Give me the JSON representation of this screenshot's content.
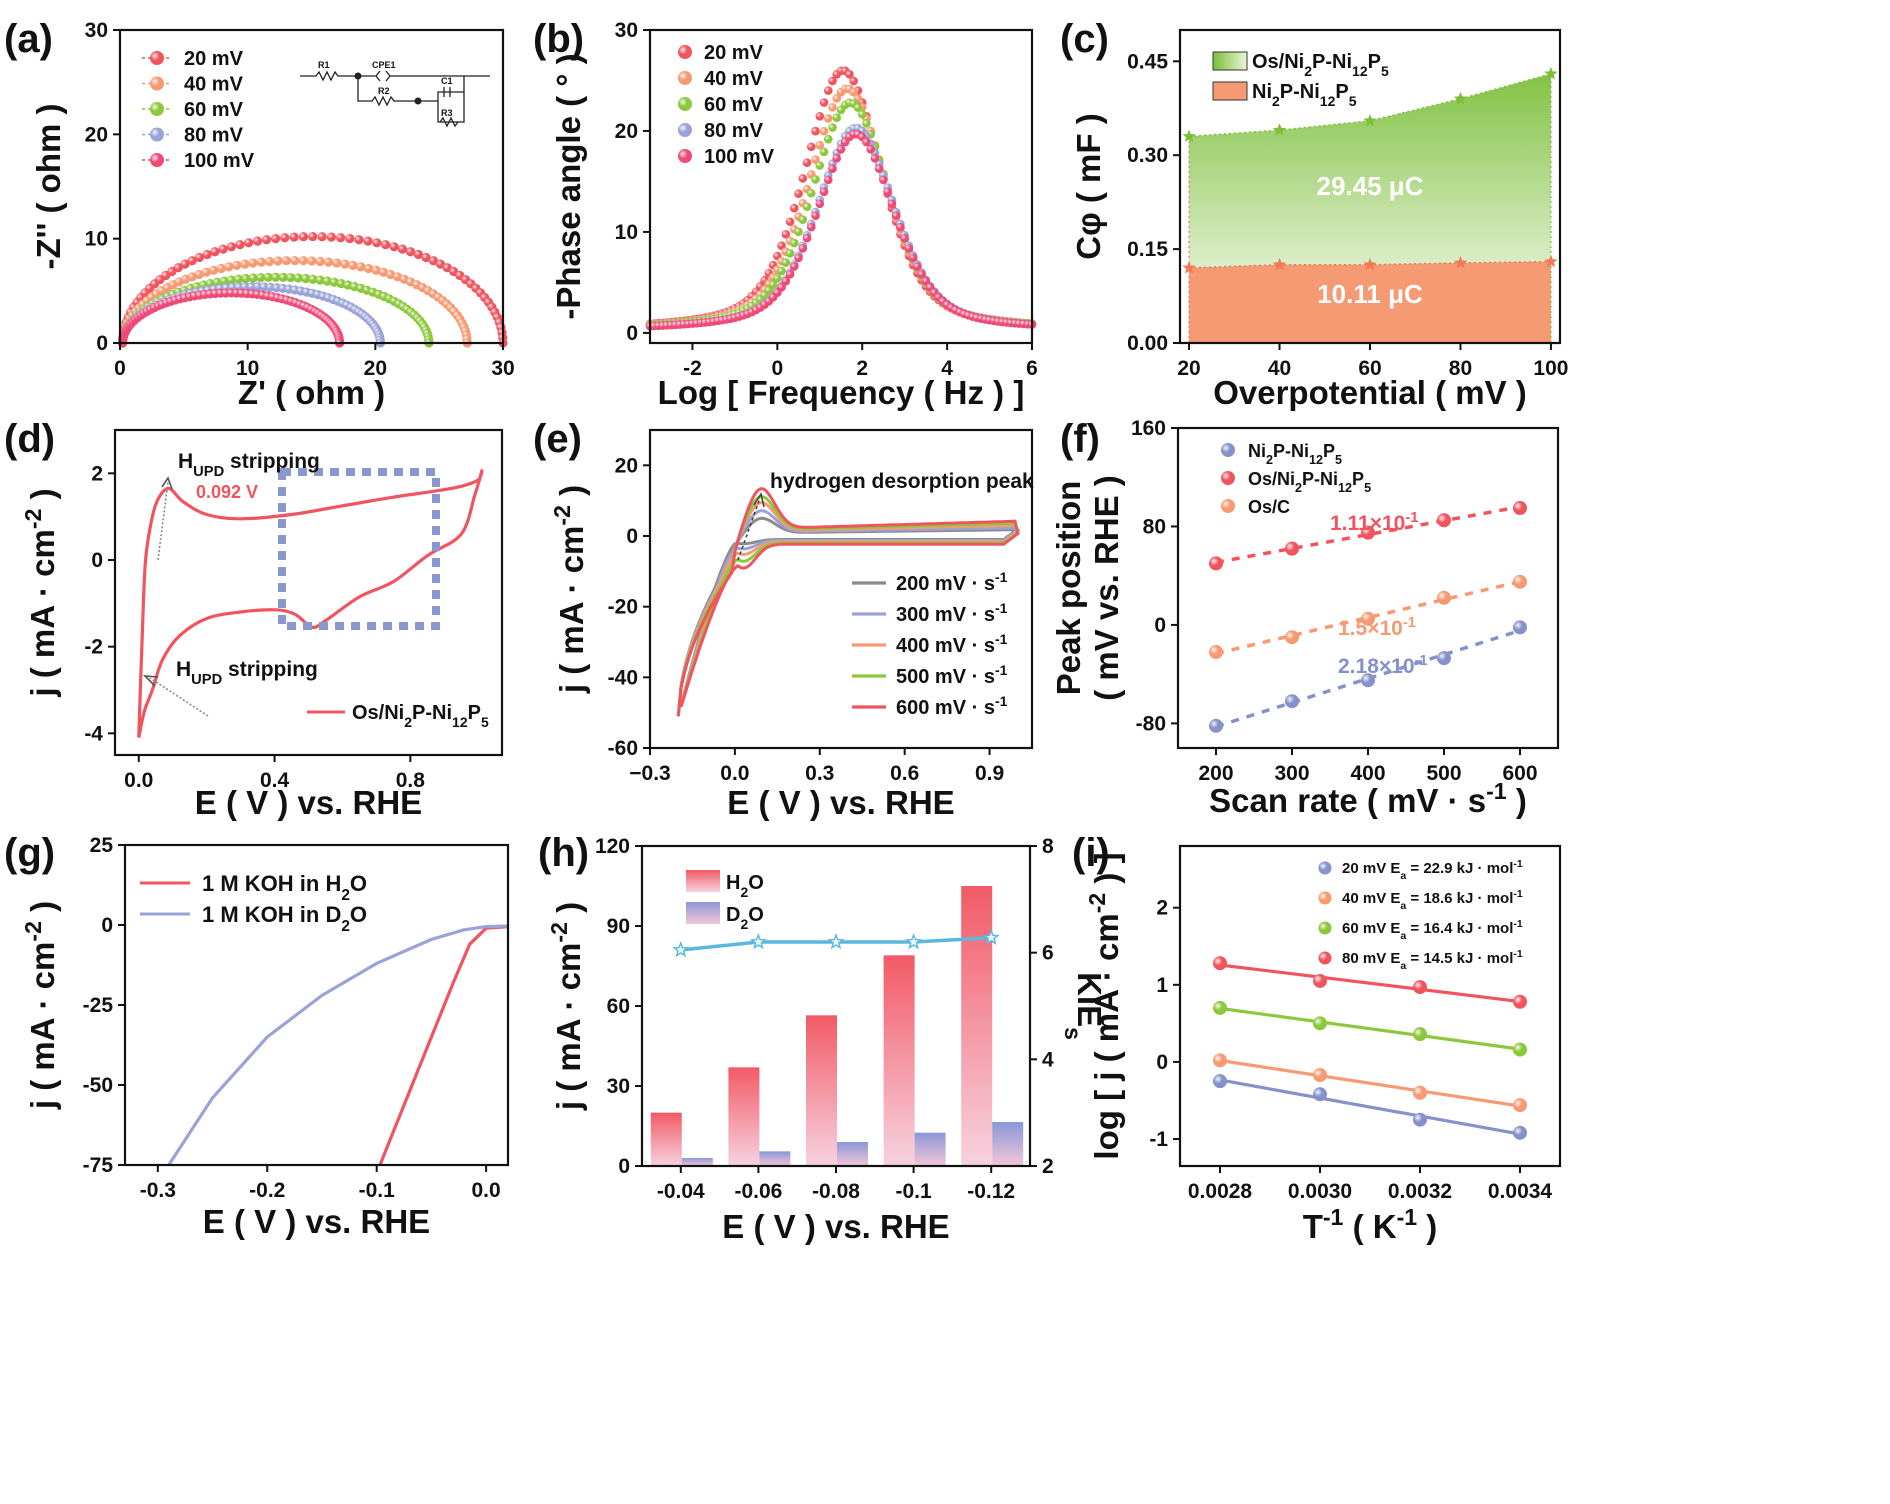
{
  "colors": {
    "red": "#f0555f",
    "orange": "#f79a72",
    "green": "#8cc83c",
    "blue": "#9aa3d8",
    "pink": "#ef4a77",
    "gray": "#8b8b8b",
    "purple_blue": "#8591c9",
    "cyan": "#5ab7dd",
    "green_fill": "#8ec94e",
    "orange_fill": "#f59a73"
  },
  "panels": [
    {
      "id": "a",
      "label": "(a)",
      "xlabel": "Z' ( ohm )",
      "ylabel": "-Z'' ( ohm )",
      "xlim": [
        0,
        30
      ],
      "ylim": [
        0,
        30
      ],
      "xticks": [
        "0",
        "10",
        "20",
        "30"
      ],
      "yticks": [
        "0",
        "10",
        "20",
        "30"
      ],
      "legend": [
        "20 mV",
        "40 mV",
        "60 mV",
        "80 mV",
        "100 mV"
      ],
      "circuit_labels": [
        "R1",
        "CPE1",
        "R2",
        "C1",
        "R3"
      ]
    },
    {
      "id": "b",
      "label": "(b)",
      "xlabel": "Log [ Frequency ( Hz ) ]",
      "ylabel": "-Phase angle ( ° )",
      "xlim": [
        -3,
        6
      ],
      "ylim": [
        -1,
        30
      ],
      "xticks": [
        "-2",
        "0",
        "2",
        "4",
        "6"
      ],
      "yticks": [
        "0",
        "10",
        "20",
        "30"
      ],
      "legend": [
        "20 mV",
        "40 mV",
        "60 mV",
        "80 mV",
        "100 mV"
      ]
    },
    {
      "id": "c",
      "label": "(c)",
      "xlabel": "Overpotential ( mV )",
      "ylabel": "Cφ ( mF )",
      "xlim": [
        18,
        102
      ],
      "ylim": [
        0,
        0.5
      ],
      "xticks": [
        "20",
        "40",
        "60",
        "80",
        "100"
      ],
      "yticks": [
        "0.00",
        "0.15",
        "0.30",
        "0.45"
      ],
      "legend": [
        "Os/Ni2P-Ni12P5",
        "Ni2P-Ni12P5"
      ],
      "area_labels": [
        "29.45 μC",
        "10.11 μC"
      ]
    },
    {
      "id": "d",
      "label": "(d)",
      "xlabel": "E ( V ) vs. RHE",
      "ylabel": "j ( mA · cm-2 )",
      "xlim": [
        -0.07,
        1.07
      ],
      "ylim": [
        -4.5,
        3
      ],
      "xticks": [
        "0.0",
        "0.4",
        "0.8"
      ],
      "yticks": [
        "-4",
        "-2",
        "0",
        "2"
      ],
      "legend": [
        "Os/Ni2P-Ni12P5"
      ],
      "annotations": [
        "HUPD stripping",
        "0.092 V",
        "HUPD stripping"
      ]
    },
    {
      "id": "e",
      "label": "(e)",
      "xlabel": "E ( V ) vs. RHE",
      "ylabel": "j ( mA · cm-2 )",
      "xlim": [
        -0.3,
        1.05
      ],
      "ylim": [
        -60,
        30
      ],
      "xticks": [
        "−0.3",
        "0.0",
        "0.3",
        "0.6",
        "0.9"
      ],
      "yticks": [
        "-60",
        "-40",
        "-20",
        "0",
        "20"
      ],
      "legend": [
        "200 mV · s-1",
        "300 mV · s-1",
        "400 mV · s-1",
        "500 mV · s-1",
        "600 mV · s-1"
      ],
      "annotation": "hydrogen desorption peak"
    },
    {
      "id": "f",
      "label": "(f)",
      "xlabel": "Scan rate ( mV · s-1 )",
      "ylabel": "Peak position ( mV vs. RHE )",
      "xlim": [
        150,
        650
      ],
      "ylim": [
        -100,
        160
      ],
      "xticks": [
        "200",
        "300",
        "400",
        "500",
        "600"
      ],
      "yticks": [
        "-80",
        "0",
        "80",
        "160"
      ],
      "legend": [
        "Ni2P-Ni12P5",
        "Os/Ni2P-Ni12P5",
        "Os/C"
      ],
      "slope_labels": [
        "1.11×10-1",
        "1.5×10-1",
        "2.18×10-1"
      ]
    },
    {
      "id": "g",
      "label": "(g)",
      "xlabel": "E ( V ) vs. RHE",
      "ylabel": "j ( mA · cm-2 )",
      "xlim": [
        -0.33,
        0.02
      ],
      "ylim": [
        -75,
        25
      ],
      "xticks": [
        "-0.3",
        "-0.2",
        "-0.1",
        "0.0"
      ],
      "yticks": [
        "-75",
        "-50",
        "-25",
        "0",
        "25"
      ],
      "legend": [
        "1 M KOH in H2O",
        "1 M KOH in D2O"
      ]
    },
    {
      "id": "h",
      "label": "(h)",
      "xlabel": "E ( V ) vs. RHE",
      "ylabel": "j ( mA · cm-2 )",
      "ylabel2": "KIEs",
      "ylim": [
        0,
        120
      ],
      "y2lim": [
        2,
        8
      ],
      "xticks": [
        "-0.04",
        "-0.06",
        "-0.08",
        "-0.1",
        "-0.12"
      ],
      "yticks": [
        "0",
        "30",
        "60",
        "90",
        "120"
      ],
      "y2ticks": [
        "2",
        "4",
        "6",
        "8"
      ],
      "legend": [
        "H2O",
        "D2O"
      ]
    },
    {
      "id": "i",
      "label": "(i)",
      "xlabel": "T-1 ( K-1 )",
      "ylabel": "log [ j ( mA · cm-2 ) ]",
      "xlim": [
        0.00272,
        0.00348
      ],
      "ylim": [
        -1.35,
        2.8
      ],
      "xticks": [
        "0.0028",
        "0.0030",
        "0.0032",
        "0.0034"
      ],
      "yticks": [
        "-1",
        "0",
        "1",
        "2"
      ],
      "legend": [
        "20 mV Ea = 22.9 kJ · mol-1",
        "40 mV Ea = 18.6 kJ · mol-1",
        "60 mV Ea = 16.4 kJ · mol-1",
        "80 mV Ea = 14.5 kJ · mol-1"
      ]
    }
  ],
  "chart_data": [
    {
      "panel": "a",
      "type": "scatter",
      "series": [
        {
          "name": "20 mV",
          "diameter_ohm": 29.8,
          "x_start": 0.2
        },
        {
          "name": "40 mV",
          "diameter_ohm": 27.0,
          "x_start": 0.2
        },
        {
          "name": "60 mV",
          "diameter_ohm": 24.0,
          "x_start": 0.2
        },
        {
          "name": "80 mV",
          "diameter_ohm": 20.2,
          "x_start": 0.2
        },
        {
          "name": "100 mV",
          "diameter_ohm": 17.0,
          "x_start": 0.2
        }
      ],
      "peak_minus_Zpp": [
        10.2,
        7.9,
        6.3,
        5.4,
        4.8
      ]
    },
    {
      "panel": "b",
      "type": "scatter",
      "series": [
        {
          "name": "20 mV",
          "peak_x": 1.55,
          "peak_y": 26.0
        },
        {
          "name": "40 mV",
          "peak_x": 1.65,
          "peak_y": 24.2
        },
        {
          "name": "60 mV",
          "peak_x": 1.72,
          "peak_y": 22.8
        },
        {
          "name": "80 mV",
          "peak_x": 1.85,
          "peak_y": 20.3
        },
        {
          "name": "100 mV",
          "peak_x": 1.85,
          "peak_y": 19.7
        }
      ],
      "baseline": 0.2
    },
    {
      "panel": "c",
      "type": "area",
      "x": [
        20,
        40,
        60,
        80,
        100
      ],
      "series": [
        {
          "name": "Os/Ni2P-Ni12P5",
          "values": [
            0.33,
            0.34,
            0.355,
            0.39,
            0.43
          ]
        },
        {
          "name": "Ni2P-Ni12P5",
          "values": [
            0.12,
            0.125,
            0.125,
            0.128,
            0.13
          ]
        }
      ]
    },
    {
      "panel": "d",
      "type": "line",
      "series": [
        {
          "name": "Os/Ni2P-Ni12P5",
          "x": [
            0.0,
            0.01,
            0.02,
            0.04,
            0.06,
            0.09,
            0.13,
            0.2,
            0.3,
            0.45,
            0.6,
            0.75,
            0.88,
            0.95,
            1.0,
            1.01,
            0.99,
            0.95,
            0.85,
            0.75,
            0.65,
            0.55,
            0.51,
            0.46,
            0.4,
            0.3,
            0.2,
            0.12,
            0.07,
            0.04,
            0.02,
            0.01,
            0.0
          ],
          "y": [
            -4.1,
            -1.8,
            0.0,
            1.0,
            1.45,
            1.65,
            1.35,
            1.05,
            0.95,
            1.05,
            1.25,
            1.45,
            1.6,
            1.7,
            1.85,
            2.05,
            1.5,
            0.6,
            0.1,
            -0.5,
            -0.85,
            -1.4,
            -1.55,
            -1.25,
            -1.15,
            -1.2,
            -1.35,
            -1.75,
            -2.3,
            -3.0,
            -3.4,
            -3.7,
            -4.1
          ]
        }
      ]
    },
    {
      "panel": "e",
      "type": "line",
      "series": [
        {
          "name": "200 mV · s-1",
          "peak": 4.5,
          "cath": -1.5,
          "cap": 1.8
        },
        {
          "name": "300 mV · s-1",
          "peak": 6.5,
          "cath": -3.0,
          "cap": 2.3
        },
        {
          "name": "400 mV · s-1",
          "peak": 8.5,
          "cath": -4.5,
          "cap": 3.0
        },
        {
          "name": "500 mV · s-1",
          "peak": 10.0,
          "cath": -6.5,
          "cap": 3.6
        },
        {
          "name": "600 mV · s-1",
          "peak": 12.0,
          "cath": -8.5,
          "cap": 4.2
        }
      ],
      "cathodic_limit": {
        "x": -0.2,
        "y": -51
      }
    },
    {
      "panel": "f",
      "type": "scatter",
      "x": [
        200,
        300,
        400,
        500,
        600
      ],
      "series": [
        {
          "name": "Ni2P-Ni12P5",
          "values": [
            -82,
            -62,
            -45,
            -27,
            -2
          ]
        },
        {
          "name": "Os/Ni2P-Ni12P5",
          "values": [
            50,
            62,
            75,
            85,
            95
          ]
        },
        {
          "name": "Os/C",
          "values": [
            -22,
            -10,
            5,
            22,
            35
          ]
        }
      ]
    },
    {
      "panel": "g",
      "type": "line",
      "series": [
        {
          "name": "1 M KOH in H2O",
          "x": [
            -0.097,
            -0.07,
            -0.05,
            -0.03,
            -0.015,
            0.0,
            0.02
          ],
          "y": [
            -75,
            -52,
            -35,
            -18,
            -6,
            -1,
            -0.5
          ]
        },
        {
          "name": "1 M KOH in D2O",
          "x": [
            -0.29,
            -0.25,
            -0.2,
            -0.15,
            -0.1,
            -0.05,
            -0.02,
            0.0,
            0.02
          ],
          "y": [
            -75,
            -54,
            -35,
            -22,
            -12,
            -4.5,
            -1.5,
            -0.5,
            -0.3
          ]
        }
      ]
    },
    {
      "panel": "h",
      "type": "bar",
      "categories": [
        "-0.04",
        "-0.06",
        "-0.08",
        "-0.1",
        "-0.12"
      ],
      "series": [
        {
          "name": "H2O",
          "values": [
            20,
            37,
            56.5,
            79,
            105
          ]
        },
        {
          "name": "D2O",
          "values": [
            3,
            5.5,
            9,
            12.5,
            16.5
          ]
        },
        {
          "name": "KIEs",
          "values": [
            6.05,
            6.2,
            6.2,
            6.2,
            6.28
          ],
          "axis": "right"
        }
      ]
    },
    {
      "panel": "i",
      "type": "scatter",
      "x": [
        0.0028,
        0.003,
        0.0032,
        0.0034
      ],
      "series": [
        {
          "name": "20 mV",
          "values": [
            -0.25,
            -0.42,
            -0.75,
            -0.92
          ]
        },
        {
          "name": "40 mV",
          "values": [
            0.02,
            -0.17,
            -0.4,
            -0.56
          ]
        },
        {
          "name": "60 mV",
          "values": [
            0.7,
            0.5,
            0.36,
            0.16
          ]
        },
        {
          "name": "80 mV",
          "values": [
            1.28,
            1.05,
            0.97,
            0.78
          ]
        }
      ]
    }
  ]
}
